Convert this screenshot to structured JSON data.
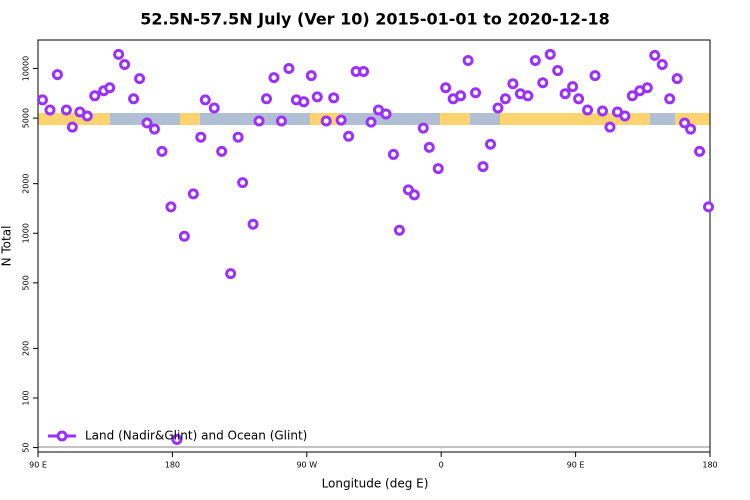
{
  "chart_data": {
    "type": "scatter",
    "title": "52.5N-57.5N July (Ver 10)   2015-01-01 to 2020-12-18",
    "x_label": "Longitude (deg E)",
    "y_label": "N Total",
    "x": [
      93,
      98,
      103,
      109,
      113,
      118,
      123,
      128,
      134,
      138,
      144,
      148,
      154,
      158,
      163,
      168,
      173,
      179,
      183,
      188,
      194,
      199,
      202,
      208,
      213,
      219,
      224,
      227,
      234,
      238,
      243,
      248,
      253,
      258,
      263,
      268,
      273,
      277,
      283,
      288,
      293,
      298,
      303,
      308,
      313,
      318,
      323,
      328,
      332,
      338,
      342,
      348,
      352,
      358,
      363,
      368,
      373,
      378,
      383,
      388,
      393,
      398,
      403,
      408,
      413,
      418,
      423,
      428,
      433,
      438,
      443,
      448,
      452,
      458,
      463,
      468,
      473,
      478,
      483,
      488,
      493,
      498,
      503,
      508,
      513,
      518,
      523,
      527,
      533,
      539
    ],
    "series": [
      {
        "name": "Land (Nadir&Glint) and Ocean (Glint)",
        "color": "#9b30ff",
        "values": [
          6450,
          5600,
          9190,
          5600,
          4410,
          5450,
          5150,
          6830,
          7330,
          7640,
          12190,
          10580,
          6550,
          8680,
          4670,
          4290,
          3140,
          1445,
          56,
          959,
          1735,
          3830,
          6450,
          5760,
          3140,
          569,
          3830,
          2030,
          1135,
          4800,
          6550,
          8810,
          4800,
          10000,
          6450,
          6280,
          9060,
          6730,
          4800,
          6640,
          4860,
          3880,
          9590,
          9590,
          4730,
          5600,
          5300,
          3010,
          1043,
          1835,
          1710,
          4350,
          3320,
          2470,
          7640,
          6550,
          6830,
          11190,
          7130,
          2540,
          3470,
          5760,
          6550,
          8090,
          7030,
          6830,
          11190,
          8200,
          12190,
          9720,
          7030,
          7760,
          6550,
          5600,
          9060,
          5520,
          4410,
          5450,
          5150,
          6830,
          7330,
          7640,
          12020,
          10580,
          6550,
          8680,
          4670,
          4290,
          3140,
          1445
        ]
      }
    ],
    "xlim": [
      90,
      540
    ],
    "xticks": [
      {
        "value": 90,
        "label": "90 E"
      },
      {
        "value": 180,
        "label": "180"
      },
      {
        "value": 270,
        "label": "90 W"
      },
      {
        "value": 360,
        "label": "0"
      },
      {
        "value": 450,
        "label": "90 E"
      },
      {
        "value": 540,
        "label": "180"
      }
    ],
    "ylim": [
      47,
      14900
    ],
    "ylog": true,
    "yticks": [
      50,
      100,
      200,
      500,
      1000,
      2000,
      5000,
      10000
    ],
    "legend": "lower left",
    "grid": false
  }
}
